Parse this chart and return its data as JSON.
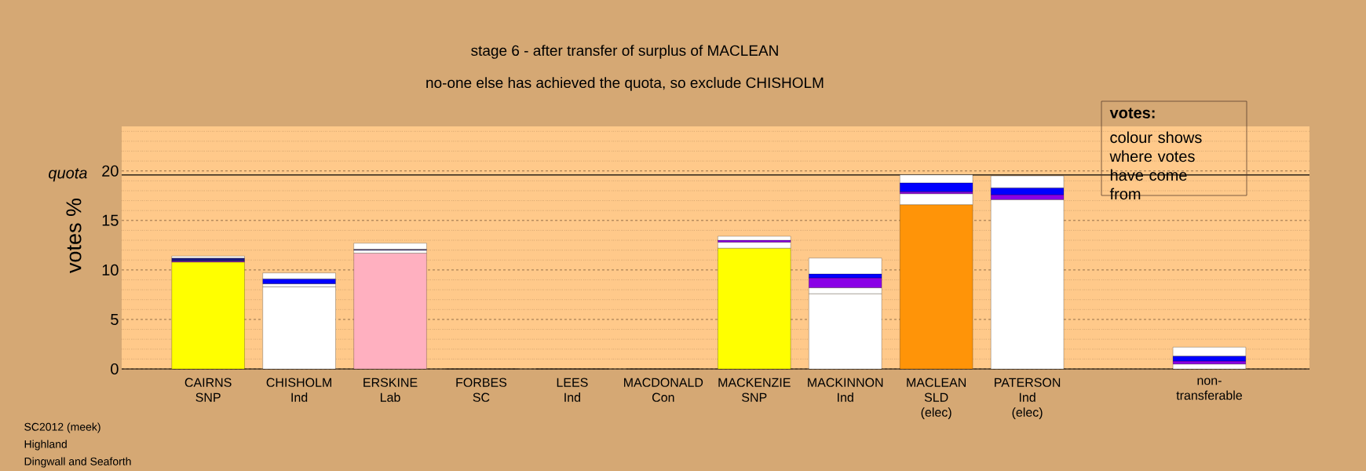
{
  "chart_data": {
    "type": "bar",
    "stacked": true,
    "title": "stage 6 - after transfer of surplus of MACLEAN",
    "subtitle": "no-one else has achieved the quota, so exclude CHISHOLM",
    "ylabel": "votes %",
    "categories": [
      "CAIRNS SNP",
      "CHISHOLM Ind",
      "ERSKINE Lab",
      "FORBES SC",
      "LEES Ind",
      "MACDONALD Con",
      "MACKENZIE SNP",
      "MACKINNON Ind",
      "MACLEAN SLD (elec)",
      "PATERSON Ind (elec)",
      null,
      "non-transferable"
    ],
    "series": [
      {
        "values": [
          10.8,
          8.3,
          11.7,
          0,
          0,
          0,
          12.2,
          7.6,
          16.6,
          17.1,
          null,
          0.5
        ],
        "colors": [
          "#ffff00",
          "#ffffff",
          "#ffb0c0",
          "#ffffff",
          "#ffffff",
          "#ffffff",
          "#ffff00",
          "#ffffff",
          "#ff9408",
          "#ffffff",
          "#ffffff",
          "#ffffff"
        ]
      },
      {
        "values": [
          0.1,
          0.3,
          0.3,
          null,
          null,
          null,
          0.6,
          0.6,
          1.1,
          0.5,
          null,
          0.3
        ],
        "colors": [
          "#8a00e6",
          "#ffffff",
          "#ffffff",
          "#ffffff",
          "#ffffff",
          "#ffffff",
          "#ffffff",
          "#ffffff",
          "#ffffff",
          "#8a00e6",
          "#ffffff",
          "#8a00e6"
        ]
      },
      {
        "values": [
          0.3,
          0.5,
          0.1,
          null,
          null,
          null,
          0.2,
          1.0,
          0.2,
          0.7,
          null,
          0.5
        ],
        "colors": [
          "#1a1a80",
          "#0000ff",
          "#1a1a80",
          "#ffffff",
          "#ffffff",
          "#ffffff",
          "#8a00e6",
          "#8a00e6",
          "#8a00e6",
          "#0000ff",
          "#ffffff",
          "#0000ff"
        ]
      },
      {
        "values": [
          0.2,
          0.6,
          0.6,
          null,
          null,
          null,
          0.4,
          0.4,
          0.9,
          1.2,
          null,
          0.9
        ],
        "colors": [
          "#ffffff",
          "#ffffff",
          "#ffffff",
          "#ffffff",
          "#ffffff",
          "#ffffff",
          "#ffffff",
          "#0000ff",
          "#0000ff",
          "#ffffff",
          "#ffffff",
          "#ffffff"
        ]
      },
      {
        "values": [
          null,
          null,
          null,
          null,
          null,
          null,
          null,
          1.6,
          0.8,
          null,
          null,
          null
        ],
        "colors": [
          "#ffffff",
          "#ffffff",
          "#ffffff",
          "#ffffff",
          "#ffffff",
          "#ffffff",
          "#ffffff",
          "#ffffff",
          "#ffffff",
          "#ffffff",
          "#ffffff",
          "#ffffff"
        ]
      }
    ],
    "ylim": [
      0,
      24.5
    ],
    "yticks": [
      0,
      {
        "value": 1,
        "label": null
      },
      {
        "value": 2,
        "label": null
      },
      {
        "value": 3,
        "label": null
      },
      {
        "value": 4,
        "label": null
      },
      5,
      {
        "value": 6,
        "label": null
      },
      {
        "value": 7,
        "label": null
      },
      {
        "value": 8,
        "label": null
      },
      {
        "value": 9,
        "label": null
      },
      10,
      {
        "value": 11,
        "label": null
      },
      {
        "value": 12,
        "label": null
      },
      {
        "value": 13,
        "label": null
      },
      {
        "value": 14,
        "label": null
      },
      15,
      {
        "value": 16,
        "label": null
      },
      {
        "value": 17,
        "label": null
      },
      {
        "value": 18,
        "label": null
      },
      {
        "value": 19,
        "label": null
      },
      20,
      {
        "value": 21,
        "label": null
      },
      {
        "value": 22,
        "label": null
      },
      {
        "value": 23,
        "label": null
      },
      {
        "value": 24,
        "label": null
      }
    ],
    "grid": "y",
    "ref_lines": [
      {
        "axis": "y",
        "value": 19.6,
        "label": "quota",
        "color": "#000000"
      }
    ],
    "annotations": [
      "votes:",
      "colour shows where votes have come from",
      "SC2012 (meek)",
      "Highland",
      "Dingwall and Seaforth"
    ]
  }
}
